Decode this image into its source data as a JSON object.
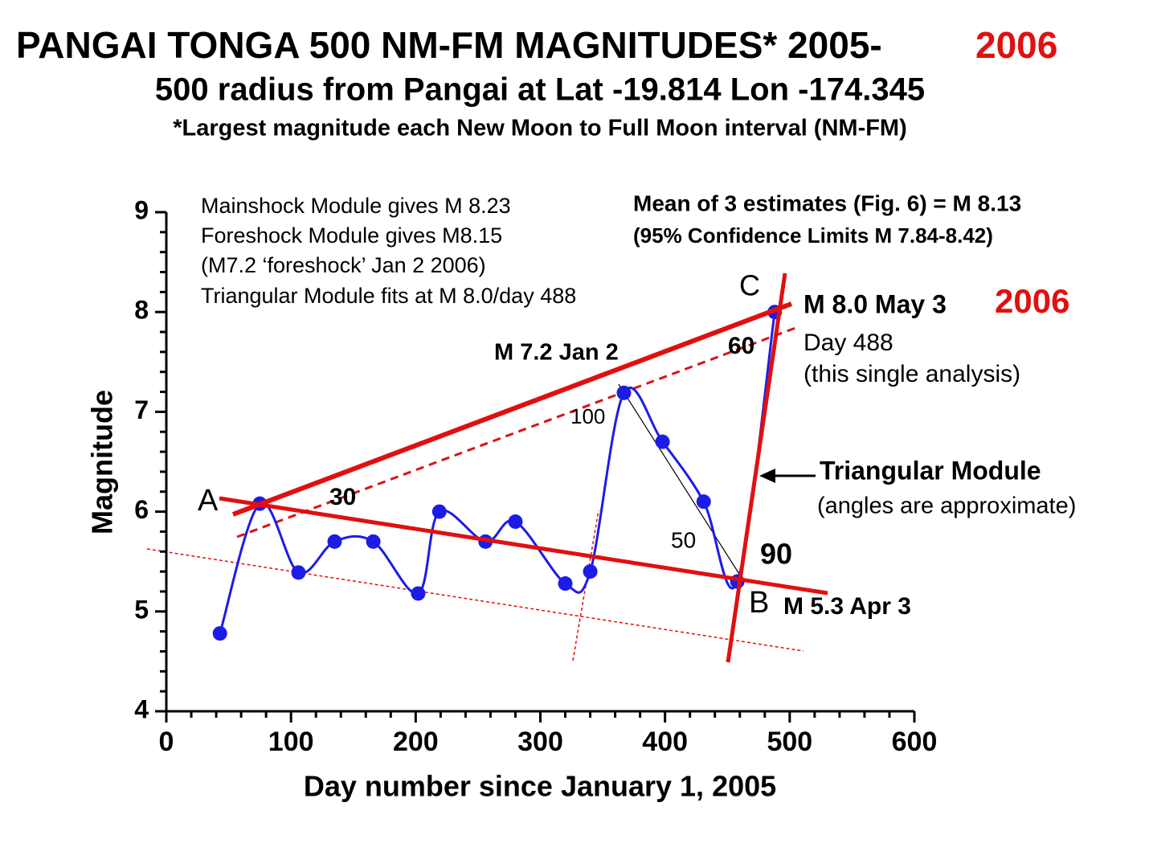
{
  "chart_data": {
    "type": "scatter",
    "title": "PANGAI TONGA 500 NM-FM MAGNITUDES* 2005-",
    "title_year": "2006",
    "subtitle": "500 radius from Pangai at Lat -19.814 Lon -174.345",
    "note": "*Largest magnitude each New Moon to Full Moon interval (NM-FM)",
    "x_label": "Day number since January 1, 2005",
    "y_label": "Magnitude",
    "x": [
      43,
      75,
      106,
      135,
      166,
      202,
      219,
      256,
      280,
      320,
      340,
      367,
      398,
      431,
      458,
      488
    ],
    "values": [
      4.78,
      6.08,
      5.39,
      5.7,
      5.7,
      5.18,
      6.0,
      5.7,
      5.9,
      5.28,
      5.4,
      7.19,
      6.7,
      6.1,
      5.3,
      8.0
    ],
    "color": "#1c1ce6",
    "xlim": [
      0,
      600
    ],
    "ylim": [
      4,
      9
    ],
    "xticks": [
      0,
      100,
      200,
      300,
      400,
      500,
      600
    ],
    "yticks": [
      4,
      5,
      6,
      7,
      8,
      9
    ],
    "xminorticks": [
      20,
      40,
      60,
      80,
      120,
      140,
      160,
      180,
      220,
      240,
      260,
      280,
      320,
      340,
      360,
      380,
      420,
      440,
      460,
      480,
      520,
      540,
      560,
      580
    ],
    "yminorticks": [
      4.2,
      4.4,
      4.6,
      4.8,
      5.2,
      5.4,
      5.6,
      5.8,
      6.2,
      6.4,
      6.6,
      6.8,
      7.2,
      7.4,
      7.6,
      7.8,
      8.2,
      8.4,
      8.6,
      8.8
    ],
    "annotations": [
      "Mainshock Module gives M 8.23",
      "Foreshock Module gives M8.15",
      "(M7.2 ‘foreshock’ Jan 2 2006)",
      "Triangular Module fits at M 8.0/day 488",
      "Mean of 3 estimates (Fig. 6) = M 8.13",
      "(95% Confidence Limits M 7.84-8.42)",
      "C",
      "M 8.0 May 3",
      "2006",
      "Day 488",
      "(this single analysis)",
      "M 7.2 Jan 2",
      "100",
      "60",
      "30",
      "A",
      "B",
      "M 5.3 Apr 3",
      "50",
      "90",
      "Triangular Module",
      "(angles are approximate)"
    ]
  }
}
